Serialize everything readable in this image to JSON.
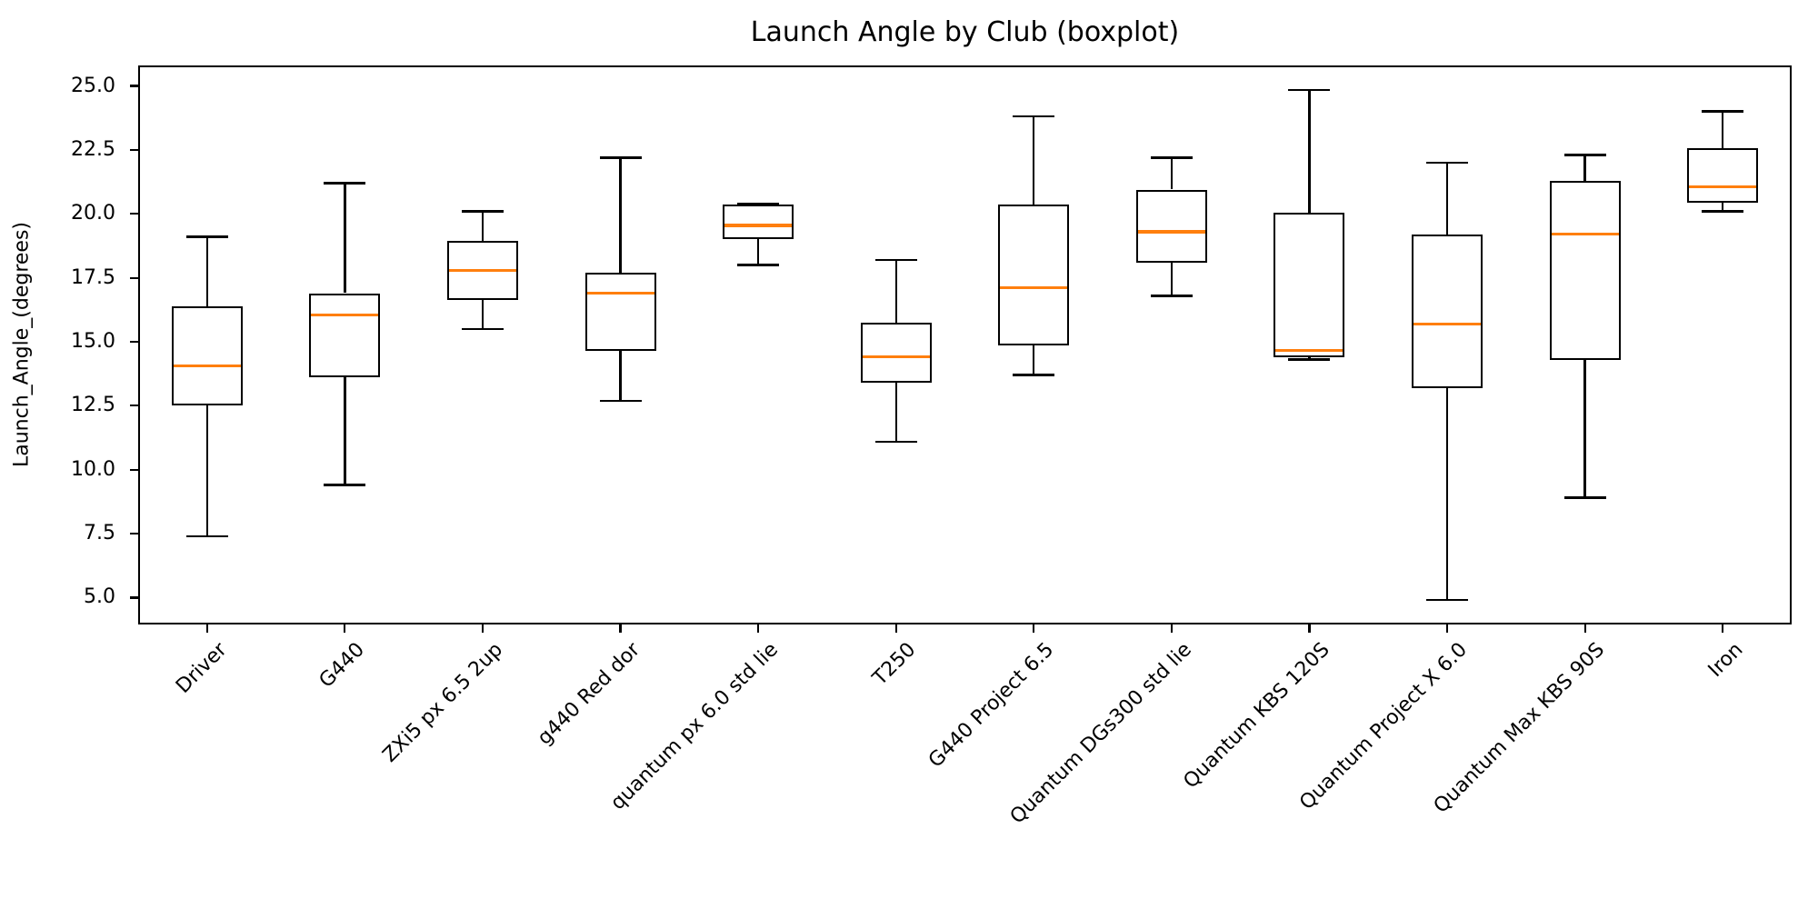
{
  "title": "Launch Angle by Club (boxplot)",
  "y_axis_label": "Launch_Angle_(degrees)",
  "chart_data": {
    "type": "boxplot",
    "title": "Launch Angle by Club (boxplot)",
    "xlabel": "",
    "ylabel": "Launch_Angle_(degrees)",
    "grid": false,
    "orientation": "vertical",
    "ylim": [
      3.95,
      25.8
    ],
    "yticks": [
      5.0,
      7.5,
      10.0,
      12.5,
      15.0,
      17.5,
      20.0,
      22.5,
      25.0
    ],
    "ytick_labels": [
      "5.0",
      "7.5",
      "10.0",
      "12.5",
      "15.0",
      "17.5",
      "20.0",
      "22.5",
      "25.0"
    ],
    "categories": [
      "Driver",
      "G440",
      "ZXi5 px 6.5 2up",
      "g440 Red dor",
      "quantum px 6.0 std lie",
      "T250",
      "G440 Project 6.5",
      "Quantum DGs300 std lie",
      "Quantum KBS 120S",
      "Quantum Project X 6.0",
      "Quantum Max KBS 90S",
      "Iron"
    ],
    "boxes": [
      {
        "label": "Driver",
        "whislo": 7.4,
        "q1": 12.5,
        "med": 14.05,
        "q3": 16.4,
        "whishi": 19.1
      },
      {
        "label": "G440",
        "whislo": 9.4,
        "q1": 13.6,
        "med": 16.05,
        "q3": 16.9,
        "whishi": 21.2
      },
      {
        "label": "ZXi5 px 6.5 2up",
        "whislo": 15.5,
        "q1": 16.65,
        "med": 17.8,
        "q3": 18.95,
        "whishi": 20.1
      },
      {
        "label": "g440 Red dor",
        "whislo": 12.7,
        "q1": 14.65,
        "med": 16.9,
        "q3": 17.7,
        "whishi": 22.2
      },
      {
        "label": "quantum px 6.0 std lie",
        "whislo": 18.0,
        "q1": 19.0,
        "med": 19.55,
        "q3": 20.35,
        "whishi": 20.4
      },
      {
        "label": "T250",
        "whislo": 11.1,
        "q1": 13.4,
        "med": 14.4,
        "q3": 15.75,
        "whishi": 18.2
      },
      {
        "label": "G440 Project 6.5",
        "whislo": 13.7,
        "q1": 14.85,
        "med": 17.1,
        "q3": 20.35,
        "whishi": 23.8
      },
      {
        "label": "Quantum DGs300 std lie",
        "whislo": 16.8,
        "q1": 18.1,
        "med": 19.3,
        "q3": 20.95,
        "whishi": 22.2
      },
      {
        "label": "Quantum KBS 120S",
        "whislo": 14.3,
        "q1": 14.4,
        "med": 14.65,
        "q3": 20.05,
        "whishi": 24.85
      },
      {
        "label": "Quantum Project X 6.0",
        "whislo": 4.9,
        "q1": 13.2,
        "med": 15.7,
        "q3": 19.2,
        "whishi": 22.0
      },
      {
        "label": "Quantum Max KBS 90S",
        "whislo": 8.9,
        "q1": 14.3,
        "med": 19.2,
        "q3": 21.3,
        "whishi": 22.3
      },
      {
        "label": "Iron",
        "whislo": 20.1,
        "q1": 20.45,
        "med": 21.05,
        "q3": 22.55,
        "whishi": 24.0
      }
    ],
    "median_color": "#ff7f0e",
    "line_color": "#000000",
    "legend": null
  }
}
